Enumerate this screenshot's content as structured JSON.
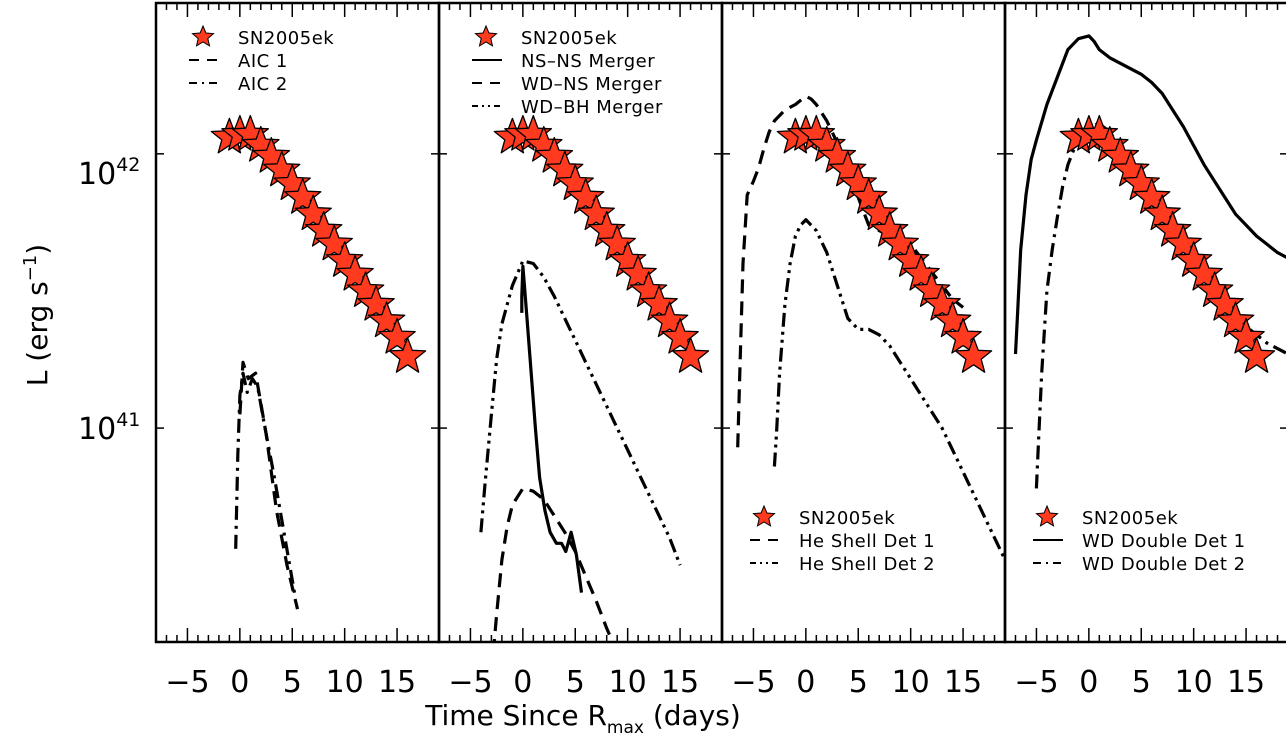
{
  "figure": {
    "xlabel_main": "Time Since R",
    "xlabel_sub": "max",
    "xlabel_unit": " (days)",
    "ylabel": "L (erg s",
    "ylabel_exp": "−1",
    "ylabel_close": ")",
    "ytick_base": "10",
    "ytick_42_exp": "42",
    "ytick_41_exp": "41",
    "xtick_labels": [
      "−5",
      "0",
      "5",
      "10",
      "15"
    ]
  },
  "chart_data": [
    {
      "type": "line",
      "xlim": [
        -8,
        19
      ],
      "ylim": [
        14,
        42.55
      ],
      "yscale": "log",
      "grid": false,
      "legend_placement": "top-left",
      "observed": {
        "name": "SN2005ek",
        "marker": "star",
        "color": "#ff3a1f",
        "x": [
          -1,
          0,
          1,
          2,
          3,
          4,
          5,
          6,
          7,
          8,
          9,
          10,
          11,
          12,
          13,
          14,
          15,
          16
        ],
        "y": [
          42.06,
          42.07,
          42.07,
          42.03,
          41.99,
          41.94,
          41.89,
          41.84,
          41.78,
          41.72,
          41.67,
          41.61,
          41.56,
          41.5,
          41.45,
          41.39,
          41.33,
          41.26
        ]
      },
      "series": [
        {
          "name": "AIC 1",
          "style": "dashed",
          "x": [
            0,
            0.3,
            0.8,
            1.5,
            2.5,
            3.5,
            4.5,
            5.5
          ],
          "y": [
            41.05,
            41.24,
            41.18,
            41.2,
            40.98,
            40.7,
            40.5,
            40.34
          ]
        },
        {
          "name": "AIC 2",
          "style": "dashdot",
          "x": [
            -0.4,
            -0.2,
            0,
            0.3,
            0.7,
            1.2,
            1.7,
            2.3,
            3.3,
            4.3,
            5.3
          ],
          "y": [
            40.56,
            40.9,
            41.12,
            41.2,
            41.13,
            41.18,
            41.15,
            41.02,
            40.82,
            40.6,
            40.38
          ]
        }
      ]
    },
    {
      "type": "line",
      "xlim": [
        -8,
        19
      ],
      "ylim": [
        14,
        42.55
      ],
      "yscale": "log",
      "grid": false,
      "legend_placement": "top-left",
      "observed": {
        "name": "SN2005ek",
        "marker": "star",
        "color": "#ff3a1f",
        "x": [
          -1,
          0,
          1,
          2,
          3,
          4,
          5,
          6,
          7,
          8,
          9,
          10,
          11,
          12,
          13,
          14,
          15,
          16
        ],
        "y": [
          42.06,
          42.07,
          42.07,
          42.03,
          41.99,
          41.94,
          41.89,
          41.84,
          41.78,
          41.72,
          41.67,
          41.61,
          41.56,
          41.5,
          41.45,
          41.39,
          41.33,
          41.26
        ]
      },
      "series": [
        {
          "name": "NS–NS Merger",
          "style": "solid",
          "x": [
            -0.1,
            -0.1,
            0,
            0.4,
            0.8,
            1.2,
            1.6,
            2.1,
            2.6,
            3.2,
            3.7,
            4.1,
            4.6,
            5.1,
            5.6
          ],
          "y": [
            41.42,
            41.48,
            41.59,
            41.4,
            41.2,
            41.0,
            40.82,
            40.7,
            40.62,
            40.58,
            40.58,
            40.55,
            40.62,
            40.54,
            40.4
          ]
        },
        {
          "name": "WD–NS Merger",
          "style": "dashed",
          "x": [
            -3,
            -2.5,
            -2,
            -1.5,
            -1,
            0,
            1,
            2,
            3,
            4,
            5,
            6,
            7,
            8,
            9
          ],
          "y": [
            40.1,
            40.32,
            40.52,
            40.64,
            40.72,
            40.78,
            40.77,
            40.74,
            40.68,
            40.62,
            40.55,
            40.46,
            40.37,
            40.27,
            40.18
          ]
        },
        {
          "name": "WD–BH Merger",
          "style": "dashdotdot",
          "x": [
            -4,
            -3.6,
            -3,
            -2.5,
            -2,
            -1,
            0,
            1,
            2,
            3,
            4,
            5,
            6,
            7,
            8,
            9,
            10,
            11,
            12,
            13,
            14,
            15
          ],
          "y": [
            40.62,
            40.8,
            41.05,
            41.25,
            41.38,
            41.52,
            41.61,
            41.6,
            41.55,
            41.48,
            41.4,
            41.32,
            41.24,
            41.16,
            41.08,
            41.0,
            40.92,
            40.84,
            40.76,
            40.68,
            40.6,
            40.5
          ]
        }
      ]
    },
    {
      "type": "line",
      "xlim": [
        -8,
        19
      ],
      "ylim": [
        14,
        42.55
      ],
      "yscale": "log",
      "grid": false,
      "legend_placement": "bottom-center",
      "observed": {
        "name": "SN2005ek",
        "marker": "star",
        "color": "#ff3a1f",
        "x": [
          -1,
          0,
          1,
          2,
          3,
          4,
          5,
          6,
          7,
          8,
          9,
          10,
          11,
          12,
          13,
          14,
          15,
          16
        ],
        "y": [
          42.06,
          42.07,
          42.07,
          42.03,
          41.99,
          41.94,
          41.89,
          41.84,
          41.78,
          41.72,
          41.67,
          41.61,
          41.56,
          41.5,
          41.45,
          41.39,
          41.33,
          41.26
        ]
      },
      "series": [
        {
          "name": "He Shell Det 1",
          "style": "dashed",
          "x": [
            -6.5,
            -6.3,
            -6,
            -5.6,
            -5,
            -4.5,
            -4,
            -3.5,
            -3,
            -2,
            -1,
            0,
            0.5,
            1,
            2,
            3,
            4,
            5,
            6,
            7,
            8,
            9,
            10,
            11,
            12,
            13,
            14,
            15
          ],
          "y": [
            40.93,
            41.2,
            41.6,
            41.85,
            41.9,
            41.95,
            42.02,
            42.08,
            42.12,
            42.16,
            42.18,
            42.21,
            42.2,
            42.18,
            42.12,
            42.04,
            41.94,
            41.84,
            41.74,
            41.72,
            41.7,
            41.7,
            41.67,
            41.62,
            41.57,
            41.52,
            41.47,
            41.44
          ]
        },
        {
          "name": "He Shell Det 2",
          "style": "dashdotdot",
          "x": [
            -3,
            -2.8,
            -2.5,
            -2,
            -1.5,
            -1,
            -0.5,
            0,
            1,
            2,
            3,
            4,
            5,
            6,
            7,
            8,
            9,
            10,
            11,
            12,
            13,
            14,
            15,
            16,
            17,
            18,
            19
          ],
          "y": [
            40.86,
            40.98,
            41.2,
            41.45,
            41.6,
            41.7,
            41.74,
            41.76,
            41.72,
            41.64,
            41.52,
            41.4,
            41.36,
            41.36,
            41.34,
            41.3,
            41.24,
            41.18,
            41.12,
            41.06,
            41.0,
            40.92,
            40.84,
            40.76,
            40.68,
            40.6,
            40.52
          ]
        }
      ]
    },
    {
      "type": "line",
      "xlim": [
        -8,
        19
      ],
      "ylim": [
        14,
        42.55
      ],
      "yscale": "log",
      "grid": false,
      "legend_placement": "bottom-center",
      "observed": {
        "name": "SN2005ek",
        "marker": "star",
        "color": "#ff3a1f",
        "x": [
          -1,
          0,
          1,
          2,
          3,
          4,
          5,
          6,
          7,
          8,
          9,
          10,
          11,
          12,
          13,
          14,
          15,
          16
        ],
        "y": [
          42.06,
          42.07,
          42.07,
          42.03,
          41.99,
          41.94,
          41.89,
          41.84,
          41.78,
          41.72,
          41.67,
          41.61,
          41.56,
          41.5,
          41.45,
          41.39,
          41.33,
          41.26
        ]
      },
      "series": [
        {
          "name": "WD Double Det 1",
          "style": "solid",
          "x": [
            -7,
            -6.8,
            -6.5,
            -6,
            -5.5,
            -5,
            -4,
            -3,
            -2,
            -1,
            0,
            0.5,
            1,
            2,
            3,
            4,
            5,
            6,
            7,
            8,
            9,
            10,
            11,
            12,
            13,
            14,
            15,
            16,
            17,
            18,
            19
          ],
          "y": [
            41.27,
            41.42,
            41.65,
            41.85,
            41.98,
            42.05,
            42.18,
            42.28,
            42.38,
            42.42,
            42.43,
            42.41,
            42.38,
            42.35,
            42.33,
            42.31,
            42.29,
            42.26,
            42.22,
            42.16,
            42.1,
            42.03,
            41.96,
            41.9,
            41.84,
            41.78,
            41.74,
            41.7,
            41.67,
            41.64,
            41.62
          ]
        },
        {
          "name": "WD Double Det 2",
          "style": "dashdot",
          "x": [
            -5,
            -4.8,
            -4.5,
            -4,
            -3.5,
            -3,
            -2.5,
            -2,
            -1,
            0,
            1,
            2,
            3,
            4,
            5,
            6,
            7,
            8,
            9,
            10,
            11,
            12,
            13,
            14,
            15,
            16,
            17,
            18,
            19
          ],
          "y": [
            40.78,
            40.95,
            41.2,
            41.5,
            41.65,
            41.77,
            41.88,
            41.96,
            42.06,
            42.1,
            42.11,
            42.08,
            42.02,
            41.95,
            41.87,
            41.81,
            41.76,
            41.7,
            41.64,
            41.59,
            41.54,
            41.49,
            41.45,
            41.41,
            41.37,
            41.34,
            41.31,
            41.29,
            41.27
          ]
        }
      ]
    }
  ]
}
